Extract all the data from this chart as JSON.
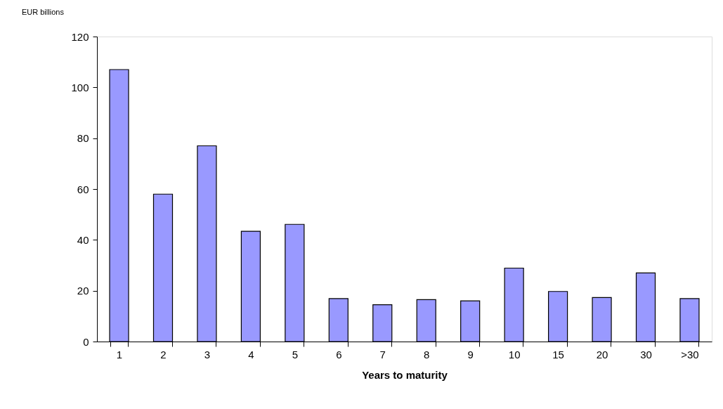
{
  "chart_data": {
    "type": "bar",
    "ylabel": "EUR billions",
    "xlabel": "Years to maturity",
    "categories": [
      "1",
      "2",
      "3",
      "4",
      "5",
      "6",
      "7",
      "8",
      "9",
      "10",
      "15",
      "20",
      "30",
      ">30"
    ],
    "values": [
      107,
      58,
      77,
      43.4,
      46.1,
      16.9,
      14.5,
      16.5,
      16,
      28.9,
      19.7,
      17.3,
      27,
      16.9
    ],
    "color": "#9999ff",
    "ylim": [
      0,
      120
    ],
    "yticks": [
      0,
      20,
      40,
      60,
      80,
      100,
      120
    ],
    "grid": false
  }
}
